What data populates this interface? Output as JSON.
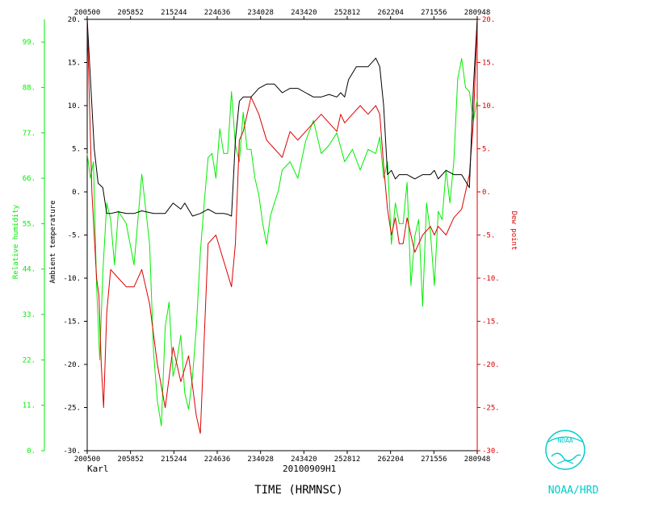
{
  "chart_data": {
    "type": "line",
    "title": "20100909H1",
    "storm": "Karl",
    "xlabel": "TIME (HRMNSC)",
    "x_ticks": [
      "200500",
      "205852",
      "215244",
      "224636",
      "234028",
      "243420",
      "252812",
      "262204",
      "271556",
      "280948"
    ],
    "left_axis": {
      "label": "Ambient temperature",
      "ticks": [
        20,
        15,
        10,
        5,
        0,
        -5,
        -10,
        -15,
        -20,
        -25,
        -30
      ],
      "tick_labels": [
        "20.",
        "15.",
        "10.",
        "5.",
        "0.",
        "-5.",
        "-10.",
        "-15.",
        "-20.",
        "-25.",
        "-30."
      ],
      "ylim": [
        -30,
        20
      ]
    },
    "rh_axis": {
      "label": "Relative humidity",
      "ticks": [
        99,
        88,
        77,
        66,
        55,
        44,
        33,
        22,
        11,
        0
      ],
      "ylim": [
        0,
        104.5
      ]
    },
    "right_axis": {
      "label": "Dew point",
      "ticks": [
        20,
        15,
        10,
        5,
        0,
        -5,
        -10,
        -15,
        -20,
        -25,
        -30
      ],
      "tick_labels": [
        "20.",
        "15.",
        "10.",
        "5.",
        "0.",
        "-5.",
        "-10.",
        "-15.",
        "-20.",
        "-25.",
        "-30."
      ],
      "ylim": [
        -30,
        20
      ]
    },
    "series": [
      {
        "name": "Ambient temperature",
        "color": "#000000",
        "x": [
          0,
          0.006,
          0.012,
          0.018,
          0.028,
          0.04,
          0.05,
          0.06,
          0.08,
          0.1,
          0.12,
          0.14,
          0.17,
          0.2,
          0.22,
          0.24,
          0.25,
          0.27,
          0.29,
          0.31,
          0.33,
          0.35,
          0.36,
          0.37,
          0.38,
          0.39,
          0.4,
          0.42,
          0.44,
          0.46,
          0.48,
          0.5,
          0.52,
          0.54,
          0.56,
          0.58,
          0.6,
          0.62,
          0.64,
          0.65,
          0.66,
          0.67,
          0.69,
          0.72,
          0.74,
          0.75,
          0.76,
          0.77,
          0.78,
          0.79,
          0.8,
          0.82,
          0.84,
          0.86,
          0.88,
          0.89,
          0.9,
          0.92,
          0.94,
          0.96,
          0.98,
          0.99,
          1.0
        ],
        "y": [
          20,
          15,
          10,
          5,
          1,
          0.5,
          -2.5,
          -2.5,
          -2.3,
          -2.5,
          -2.5,
          -2.2,
          -2.5,
          -2.5,
          -1.3,
          -2,
          -1.3,
          -2.8,
          -2.5,
          -2,
          -2.5,
          -2.5,
          -2.6,
          -2.8,
          6,
          10.5,
          11,
          11,
          12,
          12.5,
          12.5,
          11.5,
          12,
          12,
          11.5,
          11,
          11,
          11.3,
          11,
          11.5,
          11,
          13,
          14.5,
          14.5,
          15.5,
          14.5,
          10,
          2,
          2.5,
          1.5,
          2,
          2,
          1.5,
          2,
          2,
          2.5,
          1.5,
          2.5,
          2,
          2,
          0.5,
          12,
          20
        ]
      },
      {
        "name": "Dew point",
        "color": "#dd0000",
        "x": [
          0,
          0.006,
          0.012,
          0.018,
          0.024,
          0.03,
          0.036,
          0.042,
          0.05,
          0.06,
          0.08,
          0.1,
          0.12,
          0.14,
          0.16,
          0.18,
          0.2,
          0.22,
          0.24,
          0.26,
          0.28,
          0.29,
          0.31,
          0.33,
          0.35,
          0.37,
          0.38,
          0.39,
          0.4,
          0.42,
          0.44,
          0.46,
          0.48,
          0.5,
          0.52,
          0.54,
          0.56,
          0.58,
          0.6,
          0.62,
          0.64,
          0.65,
          0.66,
          0.68,
          0.7,
          0.72,
          0.74,
          0.75,
          0.76,
          0.77,
          0.78,
          0.79,
          0.8,
          0.81,
          0.82,
          0.84,
          0.86,
          0.88,
          0.89,
          0.9,
          0.92,
          0.94,
          0.96,
          0.98,
          0.99,
          1.0
        ],
        "y": [
          20,
          10,
          0,
          -5,
          -10,
          -12,
          -20,
          -25,
          -14,
          -9,
          -10,
          -11,
          -11,
          -9,
          -13,
          -20,
          -25,
          -18,
          -22,
          -19,
          -26,
          -28,
          -6,
          -5,
          -8,
          -11,
          -6,
          6,
          7,
          11,
          9,
          6,
          5,
          4,
          7,
          6,
          7,
          8,
          9,
          8,
          7,
          9,
          8,
          9,
          10,
          9,
          10,
          9,
          3,
          -2,
          -5,
          -3,
          -6,
          -6,
          -3,
          -7,
          -5,
          -4,
          -5,
          -4,
          -5,
          -3,
          -2,
          2,
          8,
          20
        ]
      },
      {
        "name": "Relative humidity",
        "color": "#00ee00",
        "x": [
          0,
          0.008,
          0.016,
          0.024,
          0.032,
          0.04,
          0.05,
          0.06,
          0.07,
          0.08,
          0.1,
          0.12,
          0.14,
          0.16,
          0.17,
          0.18,
          0.19,
          0.2,
          0.21,
          0.22,
          0.23,
          0.24,
          0.25,
          0.26,
          0.27,
          0.28,
          0.29,
          0.3,
          0.31,
          0.32,
          0.33,
          0.34,
          0.35,
          0.36,
          0.37,
          0.38,
          0.39,
          0.4,
          0.41,
          0.42,
          0.43,
          0.44,
          0.45,
          0.46,
          0.47,
          0.48,
          0.49,
          0.5,
          0.52,
          0.54,
          0.56,
          0.58,
          0.6,
          0.62,
          0.64,
          0.66,
          0.68,
          0.7,
          0.72,
          0.74,
          0.75,
          0.76,
          0.77,
          0.78,
          0.79,
          0.8,
          0.81,
          0.82,
          0.83,
          0.84,
          0.85,
          0.86,
          0.87,
          0.88,
          0.89,
          0.9,
          0.91,
          0.92,
          0.93,
          0.94,
          0.95,
          0.96,
          0.97,
          0.98,
          0.99,
          1.0
        ],
        "y": [
          72,
          66,
          70,
          40,
          22,
          43,
          60,
          56,
          45,
          58,
          55,
          45,
          67,
          50,
          24,
          12,
          6,
          30,
          36,
          18,
          22,
          28,
          14,
          10,
          18,
          30,
          48,
          60,
          71,
          72,
          66,
          78,
          72,
          72,
          87,
          74,
          70,
          82,
          73,
          73,
          66,
          62,
          55,
          50,
          57,
          60,
          63,
          68,
          70,
          66,
          75,
          80,
          72,
          74,
          77,
          70,
          73,
          68,
          73,
          72,
          76,
          66,
          70,
          50,
          60,
          55,
          55,
          65,
          40,
          52,
          56,
          35,
          60,
          53,
          40,
          58,
          56,
          68,
          60,
          70,
          90,
          95,
          88,
          87,
          80,
          85
        ]
      }
    ]
  },
  "footer": {
    "time_label": "TIME (HRMNSC)",
    "storm": "Karl",
    "flight": "20100909H1",
    "agency": "NOAA/HRD",
    "logo_text": "NOAA"
  },
  "colors": {
    "temperature": "#000000",
    "dewpoint": "#dd0000",
    "rh": "#00ee00",
    "noaa": "#00cccc"
  }
}
